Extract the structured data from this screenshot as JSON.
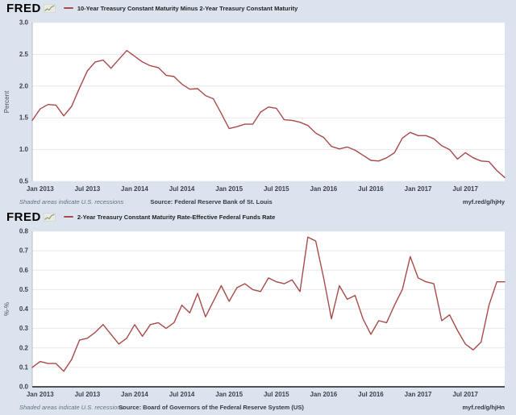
{
  "colors": {
    "background": "#dbe4ee",
    "plot_background": "#ffffff",
    "grid": "#e8e8e8",
    "axis": "#b9bec6",
    "zero_line": "#1c1c1c",
    "line": "#a84a4a"
  },
  "chart_data": [
    {
      "type": "line",
      "logo": "FRED",
      "title": "10-Year Treasury Constant Maturity Minus 2-Year Treasury Constant Maturity",
      "ylabel": "Percent",
      "ylim": [
        0.5,
        3.0
      ],
      "grid": true,
      "legend_position": "top-left",
      "zero_line": false,
      "line_color": "#a84a4a",
      "yticks": [
        {
          "v": 0.5,
          "label": "0.5"
        },
        {
          "v": 1.0,
          "label": "1.0"
        },
        {
          "v": 1.5,
          "label": "1.5"
        },
        {
          "v": 2.0,
          "label": "2.0"
        },
        {
          "v": 2.5,
          "label": "2.5"
        },
        {
          "v": 3.0,
          "label": "3.0"
        }
      ],
      "xticks": [
        {
          "index": 1,
          "label": "Jan 2013"
        },
        {
          "index": 7,
          "label": "Jul 2013"
        },
        {
          "index": 13,
          "label": "Jan 2014"
        },
        {
          "index": 19,
          "label": "Jul 2014"
        },
        {
          "index": 25,
          "label": "Jan 2015"
        },
        {
          "index": 31,
          "label": "Jul 2015"
        },
        {
          "index": 37,
          "label": "Jan 2016"
        },
        {
          "index": 43,
          "label": "Jul 2016"
        },
        {
          "index": 49,
          "label": "Jan 2017"
        },
        {
          "index": 55,
          "label": "Jul 2017"
        }
      ],
      "x": [
        "2012-12",
        "2013-01",
        "2013-02",
        "2013-03",
        "2013-04",
        "2013-05",
        "2013-06",
        "2013-07",
        "2013-08",
        "2013-09",
        "2013-10",
        "2013-11",
        "2013-12",
        "2014-01",
        "2014-02",
        "2014-03",
        "2014-04",
        "2014-05",
        "2014-06",
        "2014-07",
        "2014-08",
        "2014-09",
        "2014-10",
        "2014-11",
        "2014-12",
        "2015-01",
        "2015-02",
        "2015-03",
        "2015-04",
        "2015-05",
        "2015-06",
        "2015-07",
        "2015-08",
        "2015-09",
        "2015-10",
        "2015-11",
        "2015-12",
        "2016-01",
        "2016-02",
        "2016-03",
        "2016-04",
        "2016-05",
        "2016-06",
        "2016-07",
        "2016-08",
        "2016-09",
        "2016-10",
        "2016-11",
        "2016-12",
        "2017-01",
        "2017-02",
        "2017-03",
        "2017-04",
        "2017-05",
        "2017-06",
        "2017-07",
        "2017-08",
        "2017-09",
        "2017-10",
        "2017-11",
        "2017-12"
      ],
      "values": [
        1.46,
        1.64,
        1.71,
        1.7,
        1.53,
        1.68,
        1.97,
        2.24,
        2.38,
        2.41,
        2.28,
        2.42,
        2.56,
        2.47,
        2.38,
        2.32,
        2.29,
        2.17,
        2.15,
        2.03,
        1.95,
        1.96,
        1.85,
        1.8,
        1.57,
        1.33,
        1.36,
        1.4,
        1.4,
        1.59,
        1.67,
        1.65,
        1.47,
        1.46,
        1.43,
        1.38,
        1.26,
        1.19,
        1.05,
        1.01,
        1.04,
        0.99,
        0.91,
        0.83,
        0.82,
        0.87,
        0.95,
        1.18,
        1.27,
        1.22,
        1.22,
        1.17,
        1.06,
        1.0,
        0.85,
        0.95,
        0.87,
        0.82,
        0.81,
        0.67,
        0.56
      ],
      "footer_left": "Shaded areas indicate U.S. recessions",
      "footer_source": "Source: Federal Reserve Bank of St. Louis",
      "footer_link": "myf.red/g/hjHy"
    },
    {
      "type": "line",
      "logo": "FRED",
      "title": "2-Year Treasury Constant Maturity Rate-Effective Federal Funds Rate",
      "ylabel": "%-%",
      "ylim": [
        0.0,
        0.8
      ],
      "grid": true,
      "legend_position": "top-left",
      "zero_line": true,
      "line_color": "#a84a4a",
      "yticks": [
        {
          "v": 0.0,
          "label": "0.0"
        },
        {
          "v": 0.1,
          "label": "0.1"
        },
        {
          "v": 0.2,
          "label": "0.2"
        },
        {
          "v": 0.3,
          "label": "0.3"
        },
        {
          "v": 0.4,
          "label": "0.4"
        },
        {
          "v": 0.5,
          "label": "0.5"
        },
        {
          "v": 0.6,
          "label": "0.6"
        },
        {
          "v": 0.7,
          "label": "0.7"
        },
        {
          "v": 0.8,
          "label": "0.8"
        }
      ],
      "xticks": [
        {
          "index": 1,
          "label": "Jan 2013"
        },
        {
          "index": 7,
          "label": "Jul 2013"
        },
        {
          "index": 13,
          "label": "Jan 2014"
        },
        {
          "index": 19,
          "label": "Jul 2014"
        },
        {
          "index": 25,
          "label": "Jan 2015"
        },
        {
          "index": 31,
          "label": "Jul 2015"
        },
        {
          "index": 37,
          "label": "Jan 2016"
        },
        {
          "index": 43,
          "label": "Jul 2016"
        },
        {
          "index": 49,
          "label": "Jan 2017"
        },
        {
          "index": 55,
          "label": "Jul 2017"
        }
      ],
      "x": [
        "2012-12",
        "2013-01",
        "2013-02",
        "2013-03",
        "2013-04",
        "2013-05",
        "2013-06",
        "2013-07",
        "2013-08",
        "2013-09",
        "2013-10",
        "2013-11",
        "2013-12",
        "2014-01",
        "2014-02",
        "2014-03",
        "2014-04",
        "2014-05",
        "2014-06",
        "2014-07",
        "2014-08",
        "2014-09",
        "2014-10",
        "2014-11",
        "2014-12",
        "2015-01",
        "2015-02",
        "2015-03",
        "2015-04",
        "2015-05",
        "2015-06",
        "2015-07",
        "2015-08",
        "2015-09",
        "2015-10",
        "2015-11",
        "2015-12",
        "2016-01",
        "2016-02",
        "2016-03",
        "2016-04",
        "2016-05",
        "2016-06",
        "2016-07",
        "2016-08",
        "2016-09",
        "2016-10",
        "2016-11",
        "2016-12",
        "2017-01",
        "2017-02",
        "2017-03",
        "2017-04",
        "2017-05",
        "2017-06",
        "2017-07",
        "2017-08",
        "2017-09",
        "2017-10",
        "2017-11",
        "2017-12"
      ],
      "values": [
        0.1,
        0.13,
        0.12,
        0.12,
        0.08,
        0.14,
        0.24,
        0.25,
        0.28,
        0.32,
        0.27,
        0.22,
        0.25,
        0.32,
        0.26,
        0.32,
        0.33,
        0.3,
        0.33,
        0.42,
        0.38,
        0.48,
        0.36,
        0.44,
        0.52,
        0.44,
        0.51,
        0.53,
        0.5,
        0.49,
        0.56,
        0.54,
        0.53,
        0.55,
        0.49,
        0.77,
        0.75,
        0.56,
        0.35,
        0.52,
        0.45,
        0.47,
        0.35,
        0.27,
        0.34,
        0.33,
        0.42,
        0.5,
        0.67,
        0.56,
        0.54,
        0.53,
        0.34,
        0.37,
        0.29,
        0.22,
        0.19,
        0.23,
        0.42,
        0.54,
        0.54
      ],
      "footer_left": "Shaded areas indicate U.S. recessions",
      "footer_source": "Source: Board of Governors of the Federal Reserve System (US)",
      "footer_link": "myf.red/g/hjHn"
    }
  ]
}
